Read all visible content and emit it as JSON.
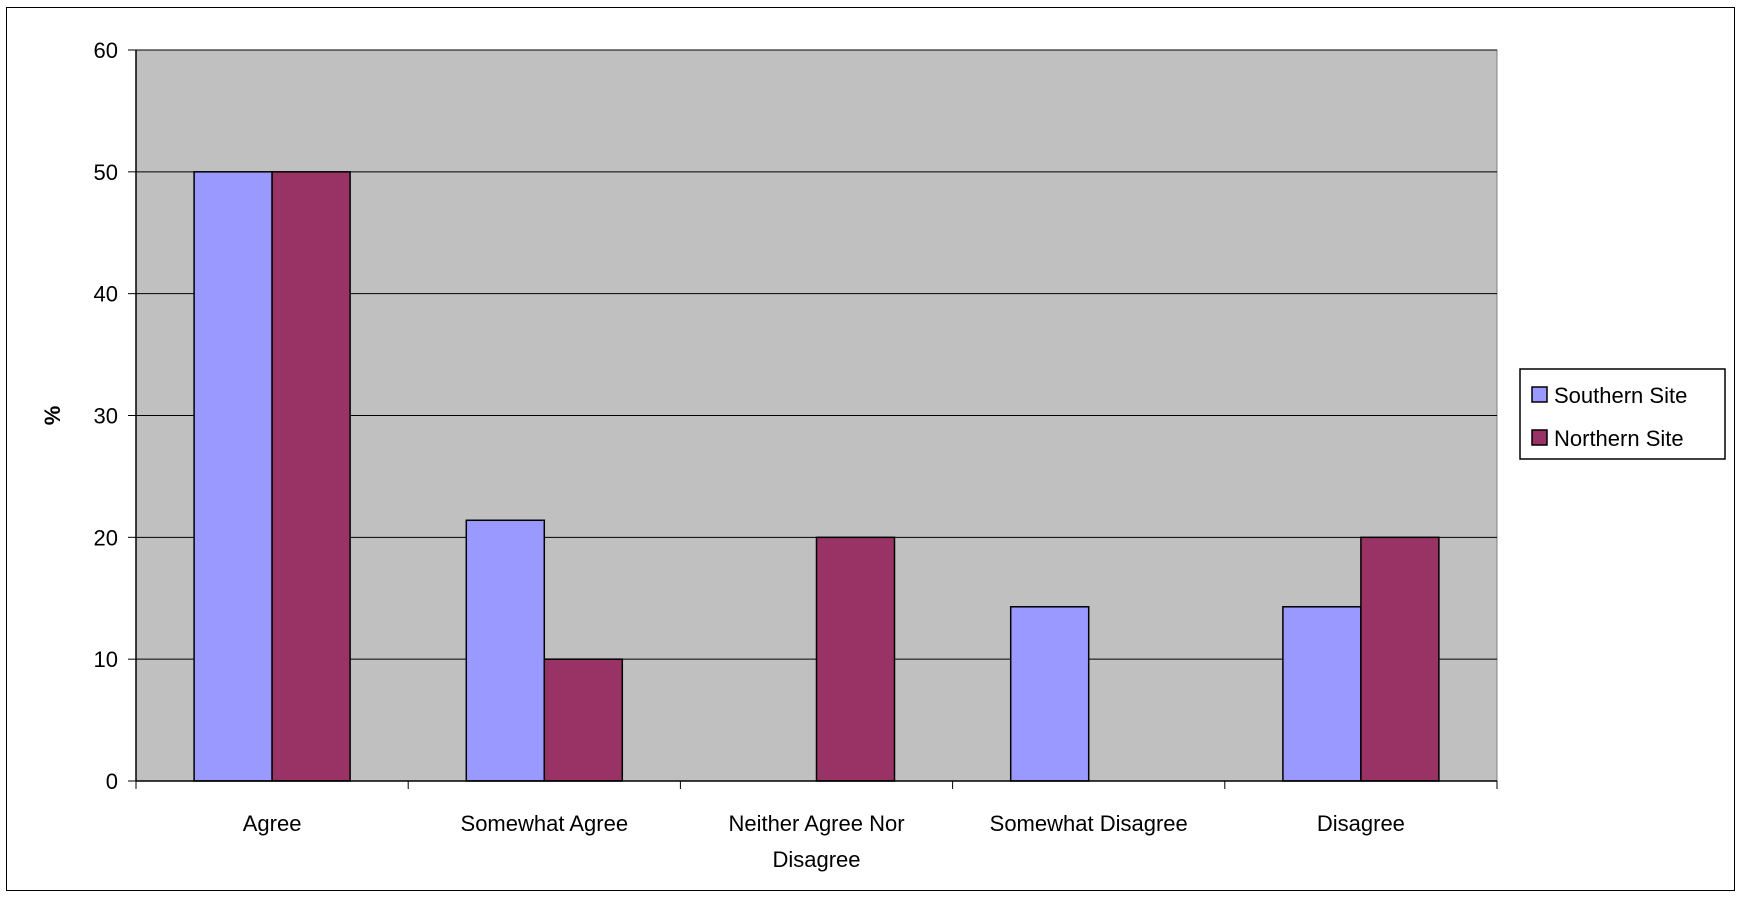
{
  "chart_data": {
    "type": "bar",
    "title": "",
    "xlabel": "",
    "ylabel": "%",
    "ylim": [
      0,
      60
    ],
    "yticks": [
      "0",
      "10",
      "20",
      "30",
      "40",
      "50",
      "60"
    ],
    "grid": true,
    "plot_background": "#C0C0C0",
    "legend_position": "right",
    "categories": [
      [
        "Agree"
      ],
      [
        "Somewhat Agree"
      ],
      [
        "Neither Agree Nor",
        "Disagree"
      ],
      [
        "Somewhat Disagree"
      ],
      [
        "Disagree"
      ]
    ],
    "series": [
      {
        "name": "Southern Site",
        "color": "#9999FF",
        "values": [
          50,
          21.4,
          0,
          14.3,
          14.3
        ]
      },
      {
        "name": "Northern Site",
        "color": "#993366",
        "values": [
          50,
          10,
          20,
          0,
          20
        ]
      }
    ]
  }
}
